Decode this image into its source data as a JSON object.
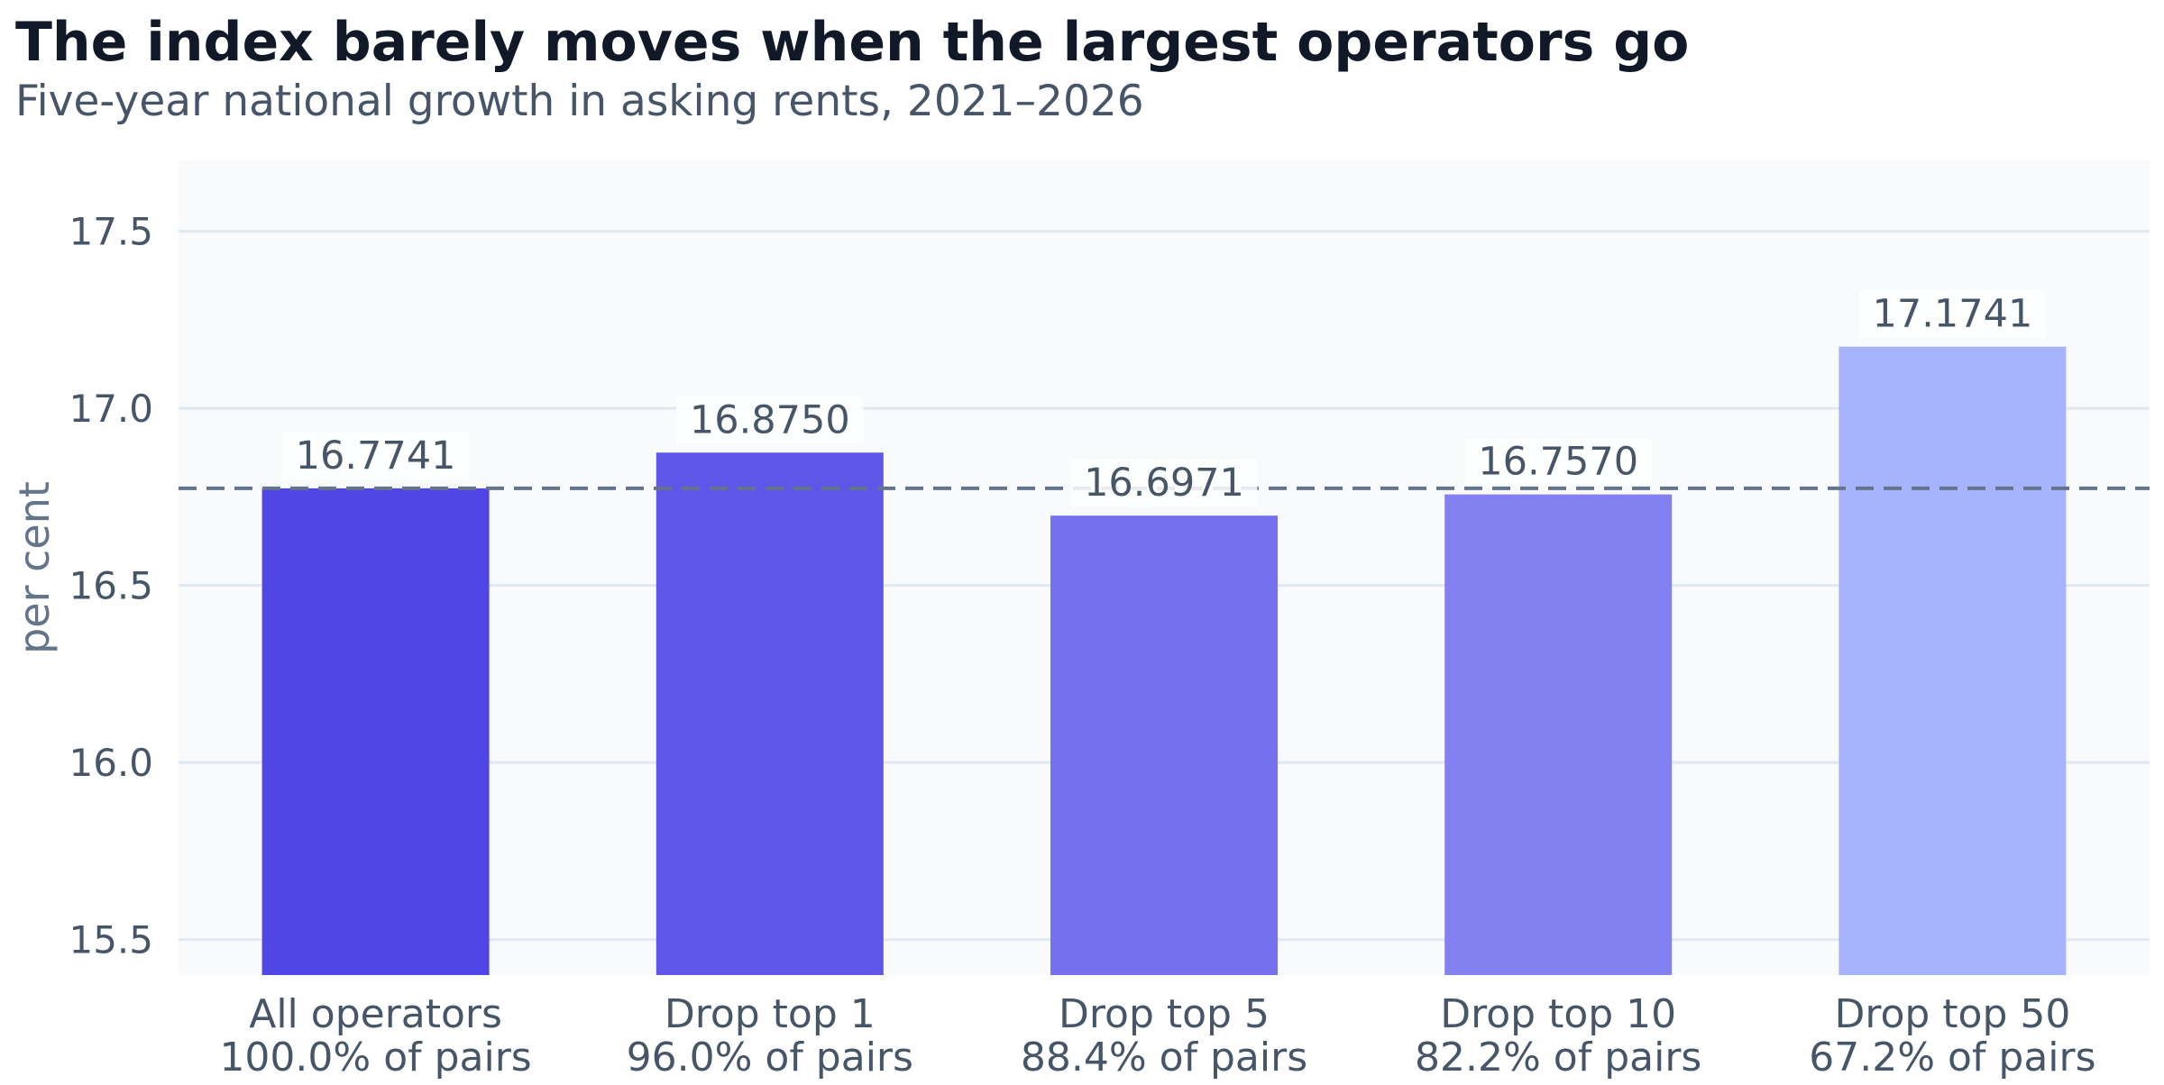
{
  "chart_data": {
    "type": "bar",
    "title": "The index barely moves when the largest operators go",
    "subtitle": "Five-year national growth in asking rents, 2021–2026",
    "xlabel": "",
    "ylabel": "per cent",
    "ylim": [
      15.4,
      17.7
    ],
    "yticks": [
      15.5,
      16.0,
      16.5,
      17.0,
      17.5
    ],
    "ytick_labels": [
      "15.5",
      "16.0",
      "16.5",
      "17.0",
      "17.5"
    ],
    "grid": true,
    "reference_line": {
      "value": 16.7741,
      "style": "dashed"
    },
    "categories": [
      {
        "name": "All operators",
        "share": "100.0% of pairs"
      },
      {
        "name": "Drop top 1",
        "share": "96.0% of pairs"
      },
      {
        "name": "Drop top 5",
        "share": "88.4% of pairs"
      },
      {
        "name": "Drop top 10",
        "share": "82.2% of pairs"
      },
      {
        "name": "Drop top 50",
        "share": "67.2% of pairs"
      }
    ],
    "values": [
      16.7741,
      16.875,
      16.6971,
      16.757,
      17.1741
    ],
    "value_labels": [
      "16.7741",
      "16.8750",
      "16.6971",
      "16.7570",
      "17.1741"
    ],
    "colors": [
      "#4f46e5",
      "#5e56e7",
      "#7470ee",
      "#8381f2",
      "#a5b4fc"
    ],
    "plot_background": "#f8fafc",
    "grid_color": "#e2e8f0",
    "reference_color": "#64748b"
  }
}
